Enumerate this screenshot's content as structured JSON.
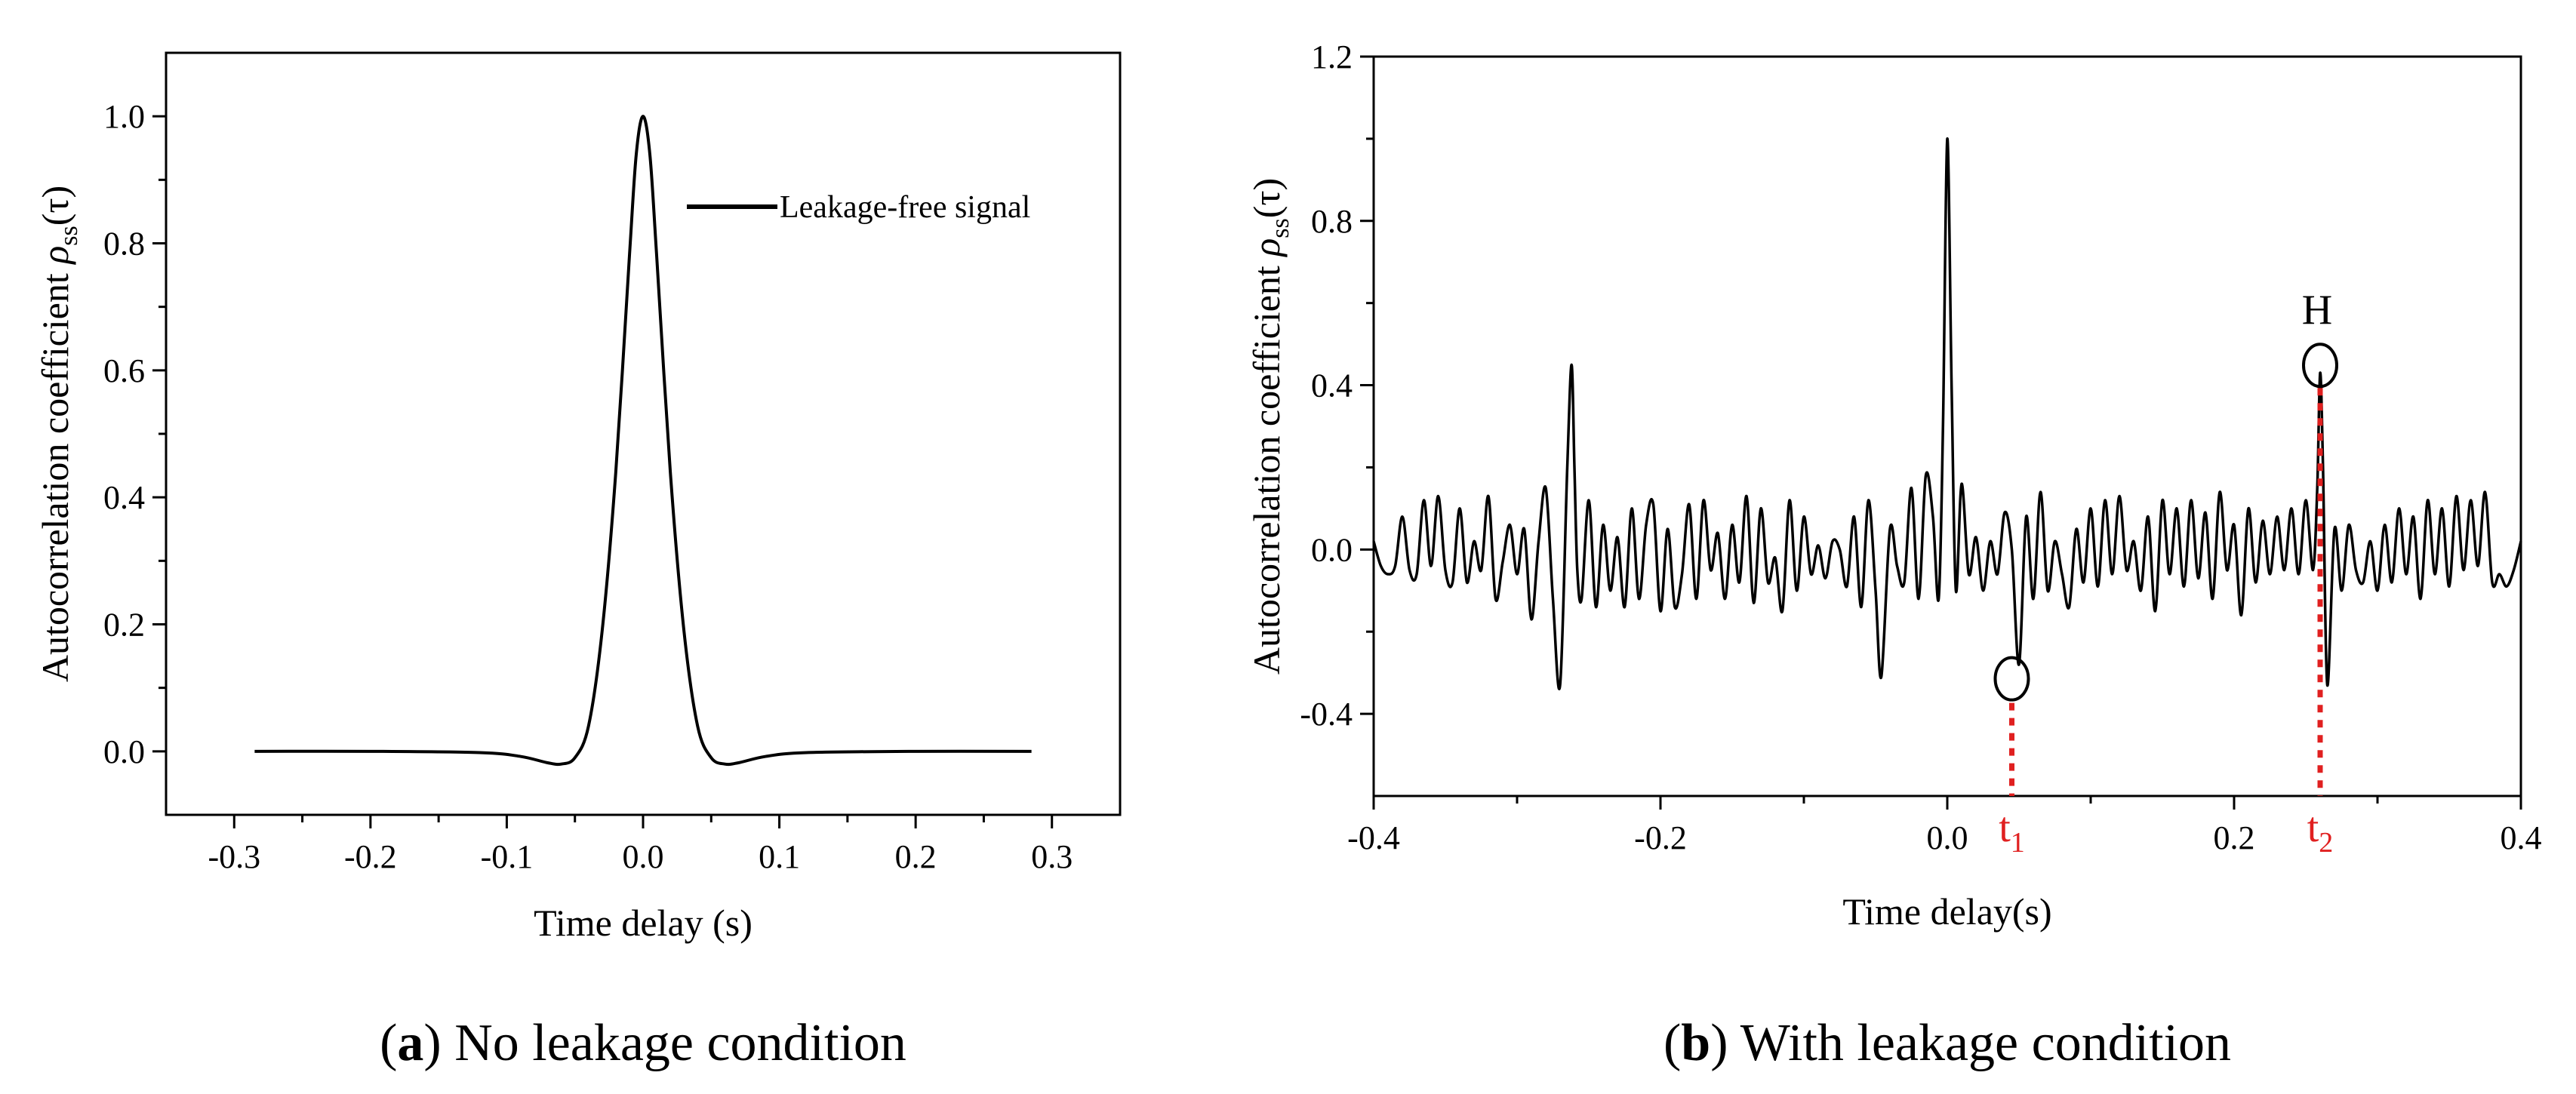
{
  "chart_data": [
    {
      "type": "line",
      "panel": "a",
      "xlabel": "Time delay (s)",
      "ylabel": "Autocorrelation coefficient ρss(τ)",
      "xlim": [
        -0.35,
        0.35
      ],
      "ylim": [
        -0.1,
        1.1
      ],
      "x_ticks": [
        -0.3,
        -0.2,
        -0.1,
        0.0,
        0.1,
        0.2,
        0.3
      ],
      "x_tick_labels": [
        "-0.3",
        "-0.2",
        "-0.1",
        "0.0",
        "0.1",
        "0.2",
        "0.3"
      ],
      "y_ticks": [
        0.0,
        0.2,
        0.4,
        0.6,
        0.8,
        1.0
      ],
      "y_tick_labels": [
        "0.0",
        "0.2",
        "0.4",
        "0.6",
        "0.8",
        "1.0"
      ],
      "legend_position": "top-right",
      "series": [
        {
          "name": "Leakage-free signal",
          "color": "#000000",
          "x": [
            -0.285,
            -0.2,
            -0.12,
            -0.09,
            -0.07,
            -0.06,
            -0.05,
            -0.04,
            -0.03,
            -0.02,
            -0.01,
            -0.005,
            0.0,
            0.005,
            0.01,
            0.02,
            0.03,
            0.04,
            0.05,
            0.06,
            0.07,
            0.09,
            0.12,
            0.2,
            0.285
          ],
          "y": [
            0.0,
            0.0,
            -0.002,
            -0.008,
            -0.018,
            -0.02,
            -0.01,
            0.04,
            0.19,
            0.44,
            0.78,
            0.94,
            1.0,
            0.94,
            0.78,
            0.44,
            0.19,
            0.04,
            -0.01,
            -0.02,
            -0.018,
            -0.008,
            -0.002,
            0.0,
            0.0
          ]
        }
      ],
      "caption_letter": "a",
      "caption_text": " No leakage condition"
    },
    {
      "type": "line",
      "panel": "b",
      "xlabel": "Time delay(s)",
      "ylabel": "Autocorrelation coefficient ρss(τ)",
      "xlim": [
        -0.4,
        0.4
      ],
      "ylim": [
        -0.6,
        1.2
      ],
      "x_ticks": [
        -0.4,
        -0.2,
        0.0,
        0.2,
        0.4
      ],
      "x_tick_labels": [
        "-0.4",
        "-0.2",
        "0.0",
        "0.2",
        "0.4"
      ],
      "y_ticks": [
        -0.4,
        0.0,
        0.4,
        0.8,
        1.2
      ],
      "y_tick_labels": [
        "-0.4",
        "0.0",
        "0.4",
        "0.8",
        "1.2"
      ],
      "series": [
        {
          "name": "",
          "color": "#000000",
          "x": [
            -0.4,
            -0.395,
            -0.39,
            -0.385,
            -0.38,
            -0.375,
            -0.37,
            -0.365,
            -0.36,
            -0.355,
            -0.35,
            -0.345,
            -0.34,
            -0.335,
            -0.33,
            -0.325,
            -0.32,
            -0.315,
            -0.31,
            -0.305,
            -0.3,
            -0.295,
            -0.29,
            -0.285,
            -0.28,
            -0.275,
            -0.27,
            -0.265,
            -0.262,
            -0.26,
            -0.258,
            -0.255,
            -0.25,
            -0.245,
            -0.24,
            -0.235,
            -0.23,
            -0.225,
            -0.22,
            -0.215,
            -0.21,
            -0.205,
            -0.2,
            -0.195,
            -0.19,
            -0.185,
            -0.18,
            -0.175,
            -0.17,
            -0.165,
            -0.16,
            -0.155,
            -0.15,
            -0.145,
            -0.14,
            -0.135,
            -0.13,
            -0.125,
            -0.12,
            -0.115,
            -0.11,
            -0.105,
            -0.1,
            -0.095,
            -0.09,
            -0.085,
            -0.08,
            -0.075,
            -0.07,
            -0.065,
            -0.06,
            -0.055,
            -0.05,
            -0.046,
            -0.04,
            -0.035,
            -0.03,
            -0.025,
            -0.02,
            -0.015,
            -0.01,
            -0.006,
            -0.003,
            0.0,
            0.003,
            0.006,
            0.01,
            0.015,
            0.02,
            0.025,
            0.03,
            0.035,
            0.04,
            0.045,
            0.05,
            0.055,
            0.06,
            0.065,
            0.07,
            0.075,
            0.08,
            0.085,
            0.09,
            0.095,
            0.1,
            0.105,
            0.11,
            0.115,
            0.12,
            0.125,
            0.13,
            0.135,
            0.14,
            0.145,
            0.15,
            0.155,
            0.16,
            0.165,
            0.17,
            0.175,
            0.18,
            0.185,
            0.19,
            0.195,
            0.2,
            0.205,
            0.21,
            0.215,
            0.22,
            0.225,
            0.23,
            0.235,
            0.24,
            0.245,
            0.25,
            0.255,
            0.258,
            0.26,
            0.262,
            0.265,
            0.27,
            0.275,
            0.28,
            0.285,
            0.29,
            0.295,
            0.3,
            0.305,
            0.31,
            0.315,
            0.32,
            0.325,
            0.33,
            0.335,
            0.34,
            0.345,
            0.35,
            0.355,
            0.36,
            0.365,
            0.37,
            0.375,
            0.38,
            0.385,
            0.39,
            0.395,
            0.4
          ],
          "y": [
            0.02,
            -0.04,
            -0.06,
            -0.04,
            0.08,
            -0.05,
            -0.06,
            0.12,
            -0.04,
            0.13,
            -0.05,
            -0.08,
            0.1,
            -0.08,
            0.02,
            -0.05,
            0.13,
            -0.12,
            -0.03,
            0.06,
            -0.06,
            0.05,
            -0.17,
            0.02,
            0.15,
            -0.12,
            -0.33,
            0.2,
            0.45,
            0.2,
            -0.05,
            -0.12,
            0.12,
            -0.14,
            0.06,
            -0.1,
            0.03,
            -0.14,
            0.1,
            -0.12,
            0.06,
            0.11,
            -0.15,
            0.05,
            -0.14,
            -0.06,
            0.11,
            -0.12,
            0.12,
            -0.05,
            0.04,
            -0.12,
            0.06,
            -0.08,
            0.13,
            -0.13,
            0.1,
            -0.08,
            -0.02,
            -0.15,
            0.12,
            -0.1,
            0.08,
            -0.06,
            0.01,
            -0.07,
            0.02,
            0.0,
            -0.09,
            0.08,
            -0.14,
            0.12,
            -0.1,
            -0.31,
            0.05,
            -0.04,
            -0.08,
            0.15,
            -0.12,
            0.18,
            0.08,
            -0.12,
            0.3,
            1.0,
            0.4,
            -0.1,
            0.16,
            -0.06,
            0.03,
            -0.1,
            0.02,
            -0.06,
            0.09,
            0.0,
            -0.28,
            0.08,
            -0.12,
            0.14,
            -0.1,
            0.02,
            -0.06,
            -0.14,
            0.05,
            -0.08,
            0.1,
            -0.09,
            0.12,
            -0.06,
            0.13,
            -0.05,
            0.02,
            -0.1,
            0.08,
            -0.15,
            0.12,
            -0.06,
            0.1,
            -0.09,
            0.12,
            -0.07,
            0.09,
            -0.12,
            0.14,
            -0.05,
            0.06,
            -0.16,
            0.1,
            -0.08,
            0.07,
            -0.06,
            0.08,
            -0.05,
            0.1,
            -0.06,
            0.12,
            -0.05,
            0.15,
            0.43,
            0.2,
            -0.33,
            0.05,
            -0.1,
            0.06,
            -0.05,
            -0.08,
            0.02,
            -0.1,
            0.06,
            -0.08,
            0.1,
            -0.06,
            0.08,
            -0.12,
            0.12,
            -0.06,
            0.1,
            -0.09,
            0.13,
            -0.05,
            0.12,
            -0.04,
            0.14,
            -0.08,
            -0.06,
            -0.09,
            -0.05,
            0.02
          ]
        }
      ],
      "annotations": {
        "H": "H",
        "t1_base": "t",
        "t1_sub": "1",
        "t2_base": "t",
        "t2_sub": "2",
        "t1_x": 0.045,
        "t1_y": -0.3,
        "t2_x": 0.26,
        "t2_y": 0.43,
        "marker_color": "#e02020"
      },
      "caption_letter": "b",
      "caption_text": " With leakage condition"
    }
  ]
}
